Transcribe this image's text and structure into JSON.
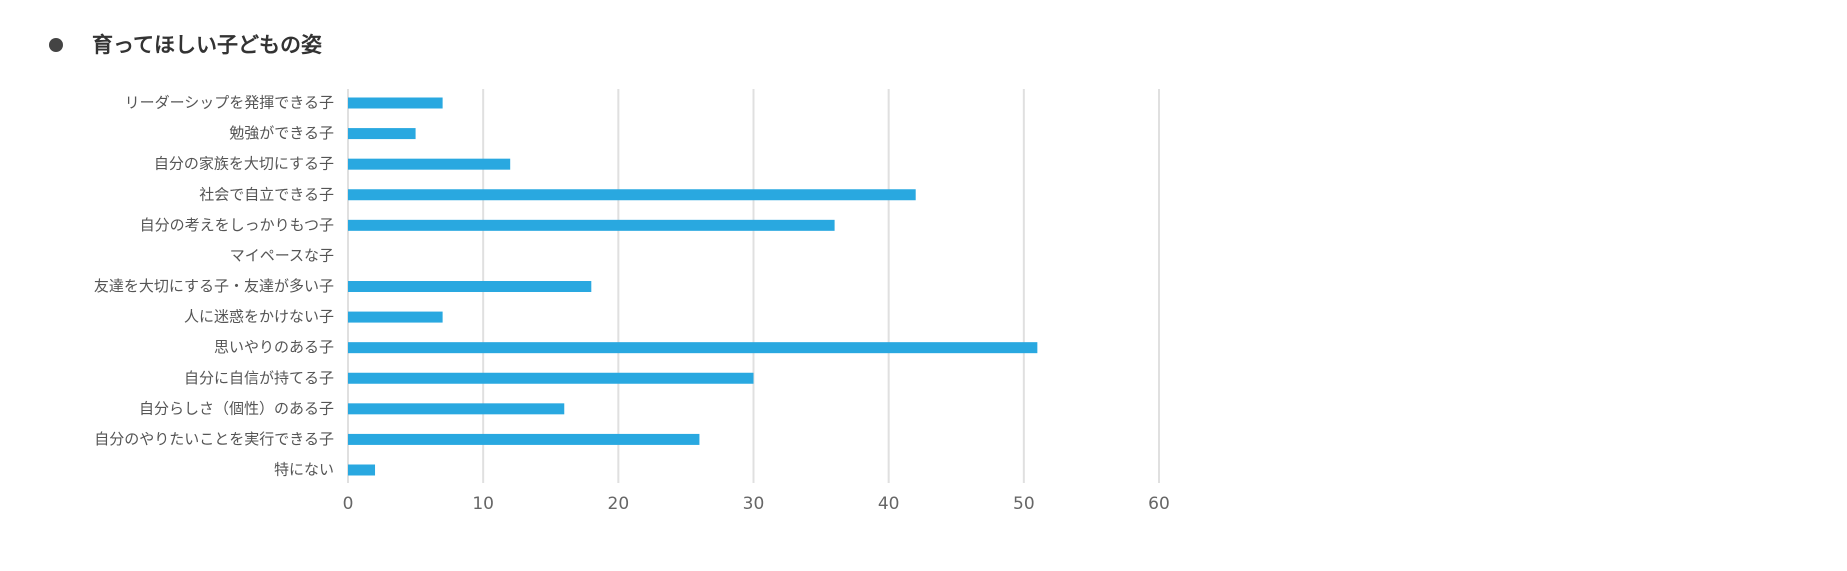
{
  "chart_data": {
    "type": "bar",
    "orientation": "horizontal",
    "title": "育ってほしい子どもの姿",
    "categories": [
      "リーダーシップを発揮できる子",
      "勉強ができる子",
      "自分の家族を大切にする子",
      "社会で自立できる子",
      "自分の考えをしっかりもつ子",
      "マイペースな子",
      "友達を大切にする子・友達が多い子",
      "人に迷惑をかけない子",
      "思いやりのある子",
      "自分に自信が持てる子",
      "自分らしさ（個性）のある子",
      "自分のやりたいことを実行できる子",
      "特にない"
    ],
    "values": [
      7,
      5,
      12,
      42,
      36,
      0,
      18,
      7,
      51,
      30,
      16,
      26,
      2
    ],
    "color": "#29a8e0",
    "xlim": [
      0,
      60
    ],
    "xticks": [
      0,
      10,
      20,
      30,
      40,
      50,
      60
    ],
    "grid": true
  }
}
